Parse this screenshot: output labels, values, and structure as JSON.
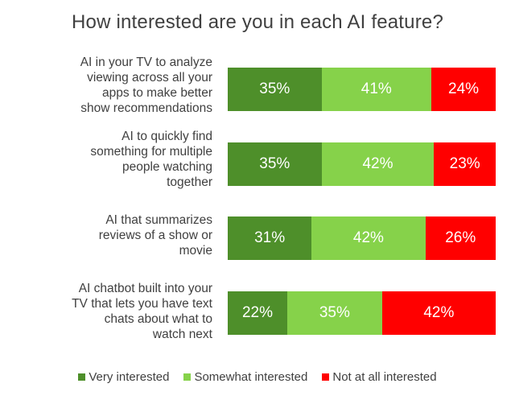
{
  "chart_data": {
    "type": "bar",
    "orientation": "horizontal",
    "stacked": true,
    "title": "How interested are you in each AI feature?",
    "categories": [
      "AI in your TV to analyze viewing across all your apps to make better show recommendations",
      "AI to quickly find something for multiple people watching together",
      "AI that summarizes reviews of a show or movie",
      "AI chatbot built into your TV that lets you have text chats about what to watch next"
    ],
    "series": [
      {
        "name": "Very interested",
        "color": "#4e8f2a",
        "values": [
          35,
          35,
          31,
          22
        ]
      },
      {
        "name": "Somewhat interested",
        "color": "#86d24a",
        "values": [
          41,
          42,
          42,
          35
        ]
      },
      {
        "name": "Not at all interested",
        "color": "#ff0000",
        "values": [
          24,
          23,
          26,
          42
        ]
      }
    ],
    "value_suffix": "%",
    "legend_position": "bottom",
    "grid": false
  }
}
